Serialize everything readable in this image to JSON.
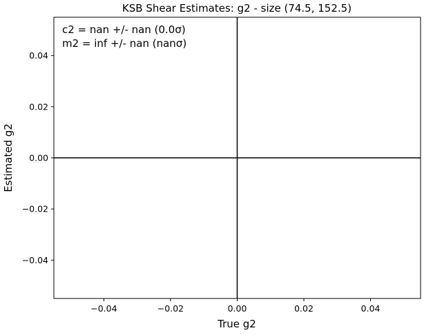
{
  "chart_data": {
    "type": "scatter",
    "title": "KSB Shear Estimates: g2  - size (74.5, 152.5)",
    "xlabel": "True g2",
    "ylabel": "Estimated g2",
    "xlim": [
      -0.055,
      0.055
    ],
    "ylim": [
      -0.055,
      0.055
    ],
    "xticks": [
      -0.04,
      -0.02,
      0.0,
      0.02,
      0.04
    ],
    "yticks": [
      -0.04,
      -0.02,
      0.0,
      0.02,
      0.04
    ],
    "xtick_labels": [
      "−0.04",
      "−0.02",
      "0.00",
      "0.02",
      "0.04"
    ],
    "ytick_labels": [
      "−0.04",
      "−0.02",
      "0.00",
      "0.02",
      "0.04"
    ],
    "reference_lines": {
      "horizontal_y": 0.0,
      "vertical_x": 0.0
    },
    "grid": false,
    "annotations": [
      "c2 = nan +/- nan (0.0σ)",
      "m2 = inf +/- nan (nanσ)"
    ],
    "series": []
  }
}
